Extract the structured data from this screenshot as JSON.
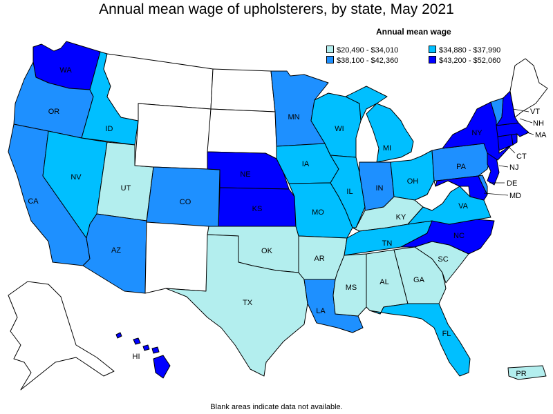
{
  "title": "Annual mean wage of upholsterers, by state, May 2021",
  "legend": {
    "title": "Annual mean wage",
    "items": [
      {
        "label": "$20,490 - $34,010",
        "color": "#b3eeee"
      },
      {
        "label": "$34,880 - $37,990",
        "color": "#00bfff"
      },
      {
        "label": "$38,100 - $42,360",
        "color": "#1e90ff"
      },
      {
        "label": "$43,200 - $52,060",
        "color": "#0000ff"
      }
    ]
  },
  "footnote": "Blank areas indicate data not available.",
  "colors": {
    "blank": "#ffffff",
    "c1": "#b3eeee",
    "c2": "#00bfff",
    "c3": "#1e90ff",
    "c4": "#0000ff"
  },
  "states": {
    "WA": {
      "label": "WA",
      "class": 4
    },
    "OR": {
      "label": "OR",
      "class": 3
    },
    "CA": {
      "label": "CA",
      "class": 3
    },
    "ID": {
      "label": "ID",
      "class": 2
    },
    "NV": {
      "label": "NV",
      "class": 2
    },
    "UT": {
      "label": "UT",
      "class": 1
    },
    "AZ": {
      "label": "AZ",
      "class": 3
    },
    "CO": {
      "label": "CO",
      "class": 3
    },
    "NE": {
      "label": "NE",
      "class": 4
    },
    "KS": {
      "label": "KS",
      "class": 4
    },
    "OK": {
      "label": "OK",
      "class": 1
    },
    "TX": {
      "label": "TX",
      "class": 1
    },
    "MN": {
      "label": "MN",
      "class": 3
    },
    "IA": {
      "label": "IA",
      "class": 2
    },
    "MO": {
      "label": "MO",
      "class": 2
    },
    "AR": {
      "label": "AR",
      "class": 1
    },
    "LA": {
      "label": "LA",
      "class": 3
    },
    "WI": {
      "label": "WI",
      "class": 2
    },
    "IL": {
      "label": "IL",
      "class": 2
    },
    "MI": {
      "label": "MI",
      "class": 2
    },
    "IN": {
      "label": "IN",
      "class": 3
    },
    "OH": {
      "label": "OH",
      "class": 2
    },
    "KY": {
      "label": "KY",
      "class": 1
    },
    "TN": {
      "label": "TN",
      "class": 2
    },
    "MS": {
      "label": "MS",
      "class": 1
    },
    "AL": {
      "label": "AL",
      "class": 1
    },
    "GA": {
      "label": "GA",
      "class": 1
    },
    "FL": {
      "label": "FL",
      "class": 2
    },
    "SC": {
      "label": "SC",
      "class": 1
    },
    "NC": {
      "label": "NC",
      "class": 4
    },
    "VA": {
      "label": "VA",
      "class": 2
    },
    "PA": {
      "label": "PA",
      "class": 3
    },
    "NY": {
      "label": "NY",
      "class": 4
    },
    "VT": {
      "label": "VT",
      "class": 3
    },
    "NH": {
      "label": "NH",
      "class": 4
    },
    "MA": {
      "label": "MA",
      "class": 4
    },
    "CT": {
      "label": "CT",
      "class": 4
    },
    "NJ": {
      "label": "NJ",
      "class": 4
    },
    "DE": {
      "label": "DE",
      "class": 3
    },
    "MD": {
      "label": "MD",
      "class": 4
    },
    "HI": {
      "label": "HI",
      "class": 4
    },
    "PR": {
      "label": "PR",
      "class": 1
    },
    "ME": {
      "label": "",
      "class": 0
    },
    "RI": {
      "label": "",
      "class": 4
    },
    "MT": {
      "label": "",
      "class": 0
    },
    "WY": {
      "label": "",
      "class": 0
    },
    "ND": {
      "label": "",
      "class": 0
    },
    "SD": {
      "label": "",
      "class": 0
    },
    "NM": {
      "label": "",
      "class": 0
    },
    "WV": {
      "label": "",
      "class": 0
    },
    "AK": {
      "label": "",
      "class": 0
    }
  }
}
